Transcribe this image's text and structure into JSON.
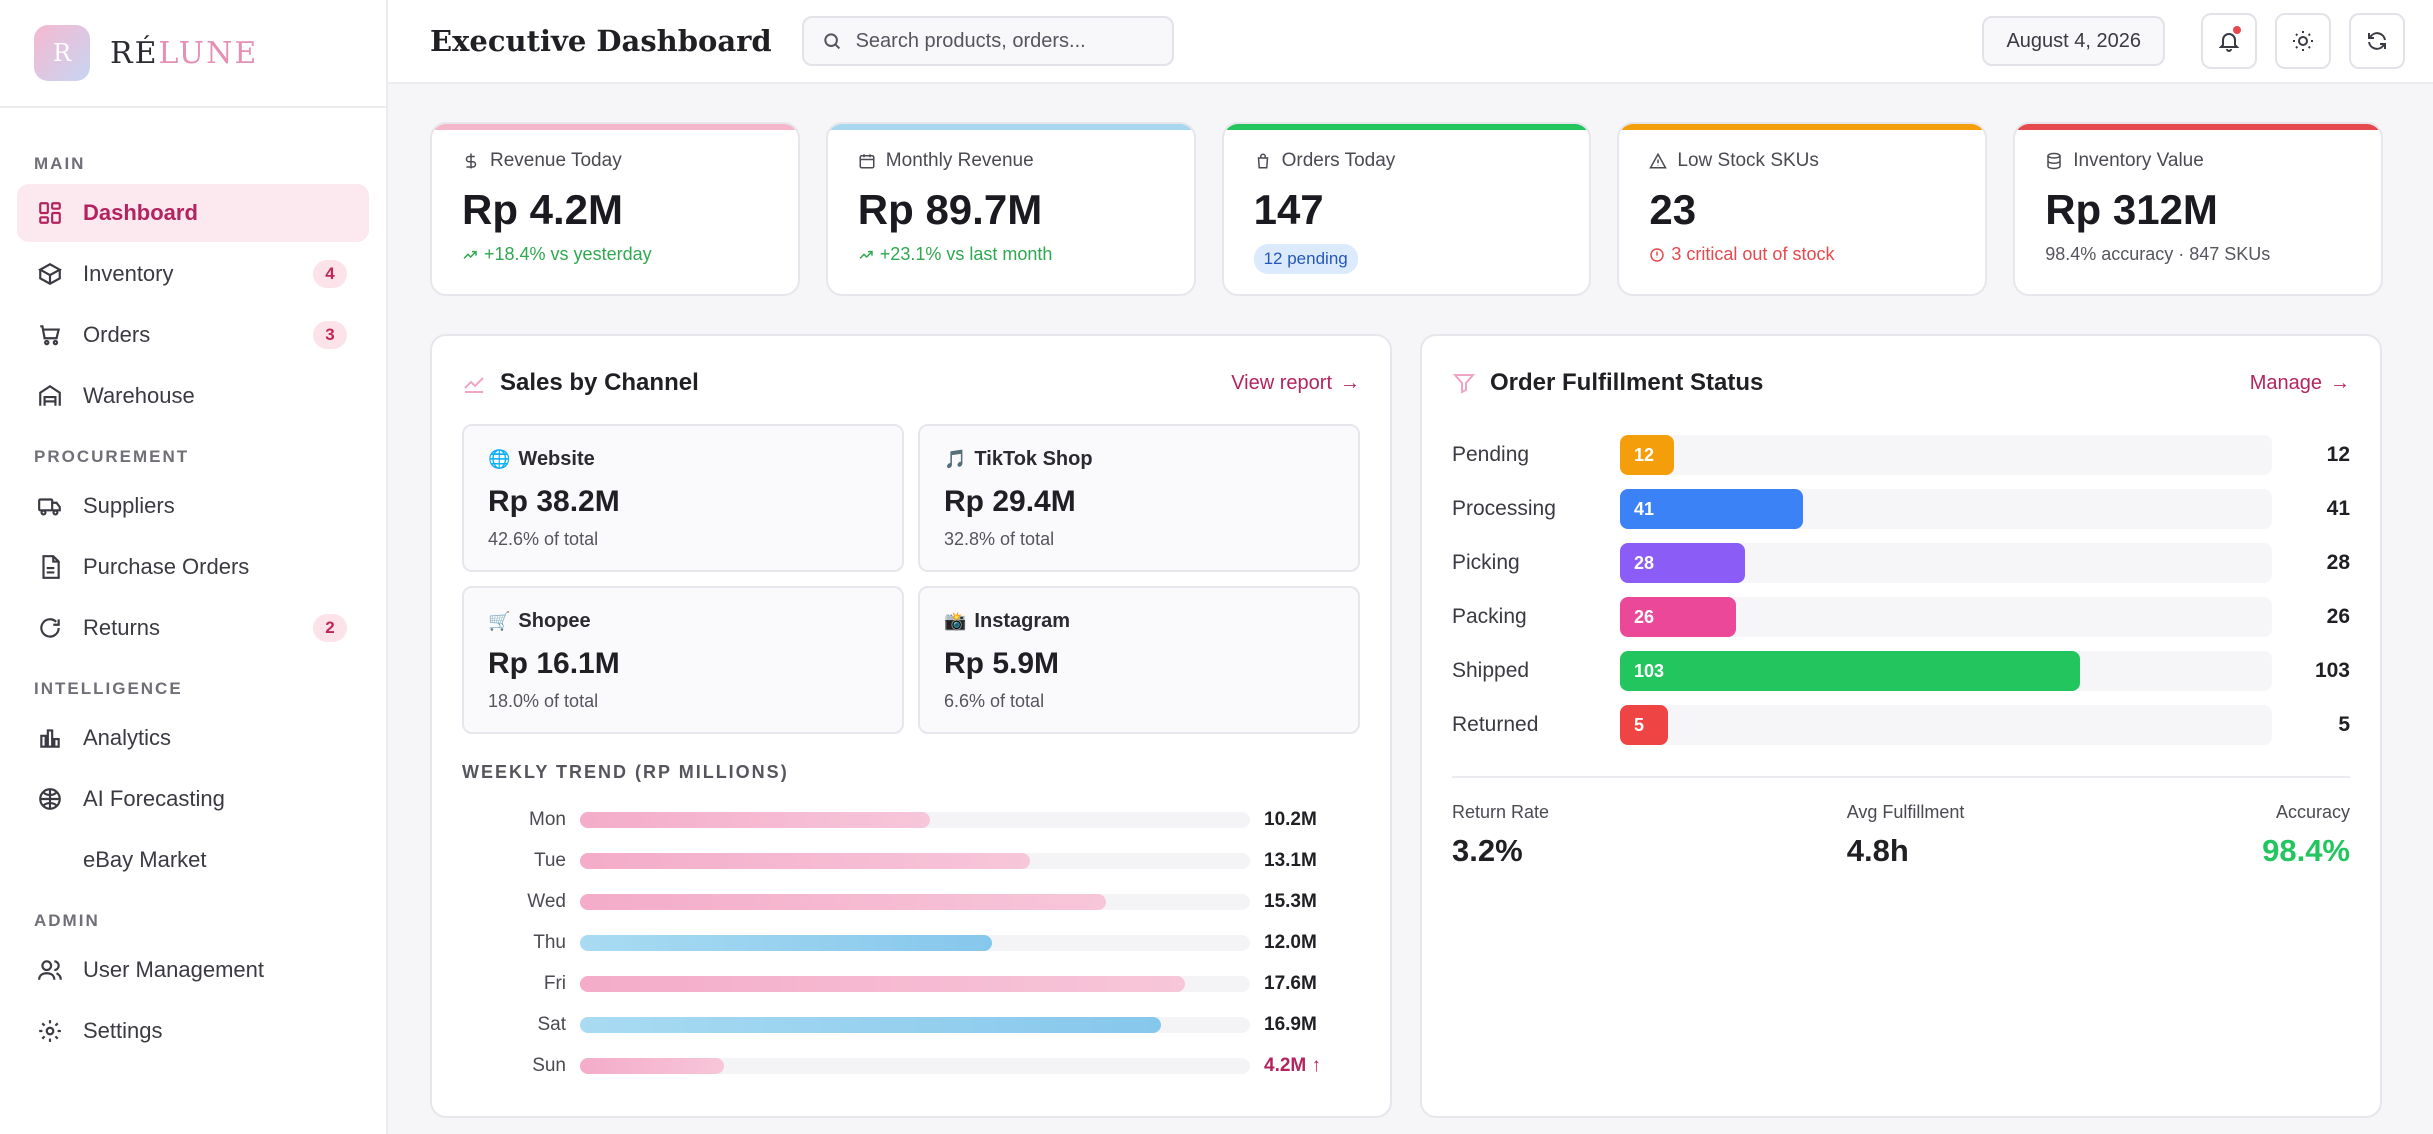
{
  "brand": {
    "logo_letter": "R",
    "name_part1": "RÉ",
    "name_part2": "LUNE"
  },
  "sidebar": {
    "sections": [
      {
        "title": "MAIN"
      },
      {
        "title": "PROCUREMENT"
      },
      {
        "title": "INTELLIGENCE"
      },
      {
        "title": "ADMIN"
      }
    ],
    "items": [
      {
        "label": "Dashboard",
        "icon": "grid-icon",
        "active": true
      },
      {
        "label": "Inventory",
        "icon": "box-icon",
        "badge": "4"
      },
      {
        "label": "Orders",
        "icon": "cart-icon",
        "badge": "3"
      },
      {
        "label": "Warehouse",
        "icon": "warehouse-icon"
      },
      {
        "label": "Suppliers",
        "icon": "truck-icon"
      },
      {
        "label": "Purchase Orders",
        "icon": "document-icon"
      },
      {
        "label": "Returns",
        "icon": "refresh-icon",
        "badge": "2"
      },
      {
        "label": "Analytics",
        "icon": "bar-chart-icon"
      },
      {
        "label": "AI Forecasting",
        "icon": "brain-icon"
      },
      {
        "label": "eBay Market",
        "icon": ""
      },
      {
        "label": "User Management",
        "icon": "users-icon"
      },
      {
        "label": "Settings",
        "icon": "gear-icon"
      }
    ]
  },
  "header": {
    "title": "Executive Dashboard",
    "search_placeholder": "Search products, orders...",
    "date": "August 4, 2026"
  },
  "kpis": [
    {
      "label": "Revenue Today",
      "icon": "dollar-icon",
      "value": "Rp 4.2M",
      "sub": "+18.4% vs yesterday",
      "accent": "#f4b6c9"
    },
    {
      "label": "Monthly Revenue",
      "icon": "calendar-icon",
      "value": "Rp 89.7M",
      "sub": "+23.1% vs last month",
      "accent": "#a8d8f0"
    },
    {
      "label": "Orders Today",
      "icon": "bag-icon",
      "value": "147",
      "sub": "12 pending",
      "accent": "#22c55e"
    },
    {
      "label": "Low Stock SKUs",
      "icon": "warning-icon",
      "value": "23",
      "sub": "3 critical out of stock",
      "accent": "#f59e0b"
    },
    {
      "label": "Inventory Value",
      "icon": "database-icon",
      "value": "Rp 312M",
      "sub": "98.4% accuracy · 847 SKUs",
      "accent": "#e5484d"
    }
  ],
  "sales": {
    "title": "Sales by Channel",
    "link": "View report",
    "channels": [
      {
        "emoji": "🌐",
        "name": "Website",
        "value": "Rp 38.2M",
        "share": "42.6% of total"
      },
      {
        "emoji": "🎵",
        "name": "TikTok Shop",
        "value": "Rp 29.4M",
        "share": "32.8% of total"
      },
      {
        "emoji": "🛒",
        "name": "Shopee",
        "value": "Rp 16.1M",
        "share": "18.0% of total"
      },
      {
        "emoji": "📸",
        "name": "Instagram",
        "value": "Rp 5.9M",
        "share": "6.6% of total"
      }
    ],
    "trend_title": "WEEKLY TREND (RP MILLIONS)",
    "trend": [
      {
        "day": "Mon",
        "value": 10.2,
        "label": "10.2M",
        "color": "pink"
      },
      {
        "day": "Tue",
        "value": 13.1,
        "label": "13.1M",
        "color": "pink"
      },
      {
        "day": "Wed",
        "value": 15.3,
        "label": "15.3M",
        "color": "pink"
      },
      {
        "day": "Thu",
        "value": 12.0,
        "label": "12.0M",
        "color": "blue"
      },
      {
        "day": "Fri",
        "value": 17.6,
        "label": "17.6M",
        "color": "pink"
      },
      {
        "day": "Sat",
        "value": 16.9,
        "label": "16.9M",
        "color": "blue"
      },
      {
        "day": "Sun",
        "value": 4.2,
        "label": "4.2M ↑",
        "color": "pink",
        "highlight": true
      }
    ],
    "trend_max": 19.5
  },
  "fulfillment": {
    "title": "Order Fulfillment Status",
    "link": "Manage",
    "statuses": [
      {
        "name": "Pending",
        "count": 12,
        "color": "#f59e0b"
      },
      {
        "name": "Processing",
        "count": 41,
        "color": "#3b82f6"
      },
      {
        "name": "Picking",
        "count": 28,
        "color": "#8b5cf6"
      },
      {
        "name": "Packing",
        "count": 26,
        "color": "#ec4899"
      },
      {
        "name": "Shipped",
        "count": 103,
        "color": "#22c55e"
      },
      {
        "name": "Returned",
        "count": 5,
        "color": "#ef4444"
      }
    ],
    "max": 146,
    "stats": [
      {
        "label": "Return Rate",
        "value": "3.2%"
      },
      {
        "label": "Avg Fulfillment",
        "value": "4.8h"
      },
      {
        "label": "Accuracy",
        "value": "98.4%"
      }
    ]
  }
}
